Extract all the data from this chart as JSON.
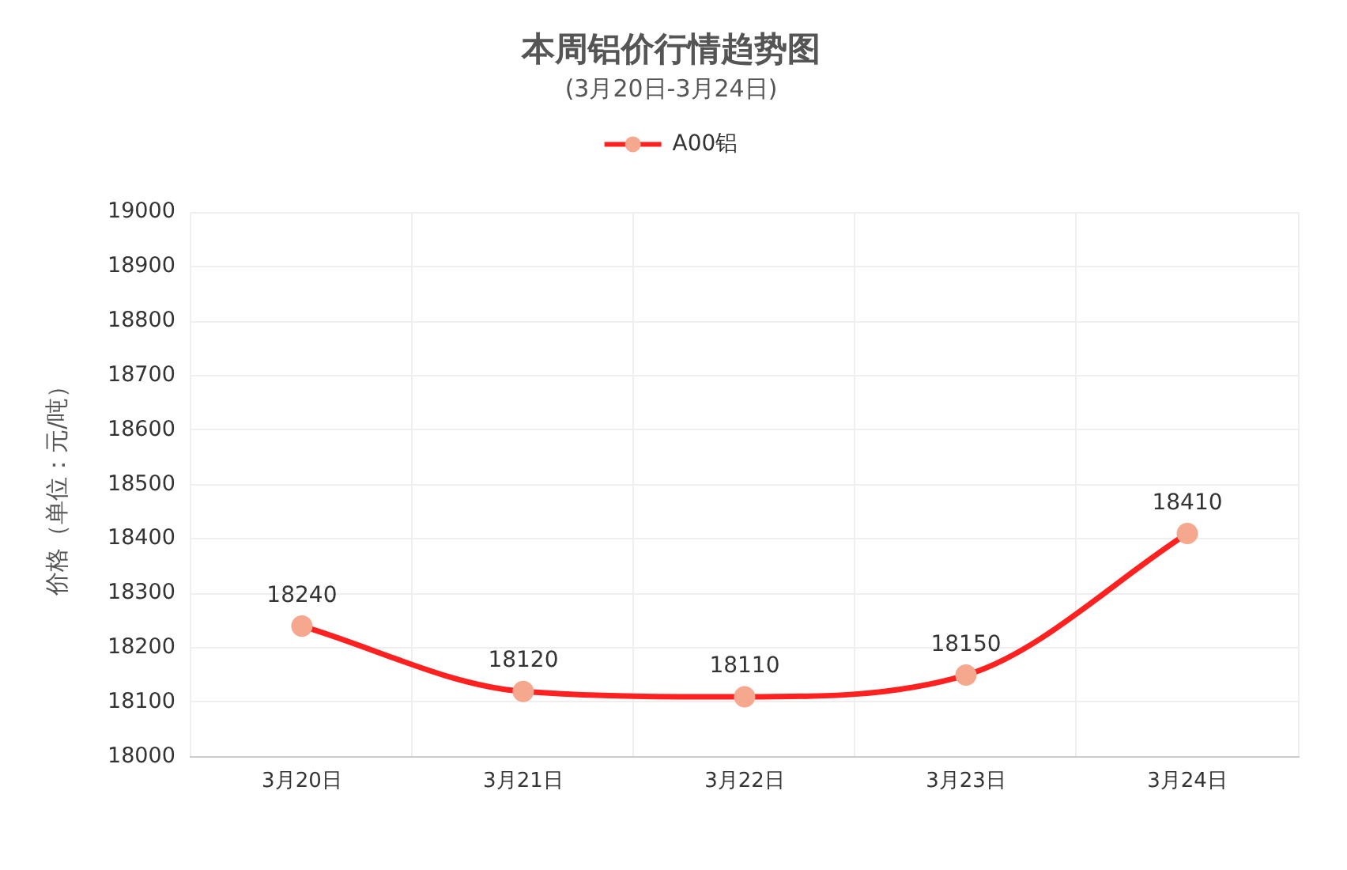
{
  "chart_data": {
    "type": "line",
    "title": "本周铝价行情趋势图",
    "subtitle": "(3月20日-3月24日)",
    "ylabel": "价格（单位：元/吨）",
    "categories": [
      "3月20日",
      "3月21日",
      "3月22日",
      "3月23日",
      "3月24日"
    ],
    "series": [
      {
        "name": "A00铝",
        "color": "#ff2020",
        "colors": [
          "#f5a88e",
          "#f5a88e",
          "#f5a88e",
          "#f5a88e",
          "#f5a88e"
        ],
        "values": [
          18240,
          18120,
          18110,
          18150,
          18410
        ]
      }
    ],
    "ylim": [
      18000,
      19000
    ],
    "yticks": [
      18000,
      18100,
      18200,
      18300,
      18400,
      18500,
      18600,
      18700,
      18800,
      18900,
      19000
    ],
    "grid": true,
    "legend": "top",
    "marker": "circle",
    "line_style": "solid",
    "data_labels": true
  }
}
